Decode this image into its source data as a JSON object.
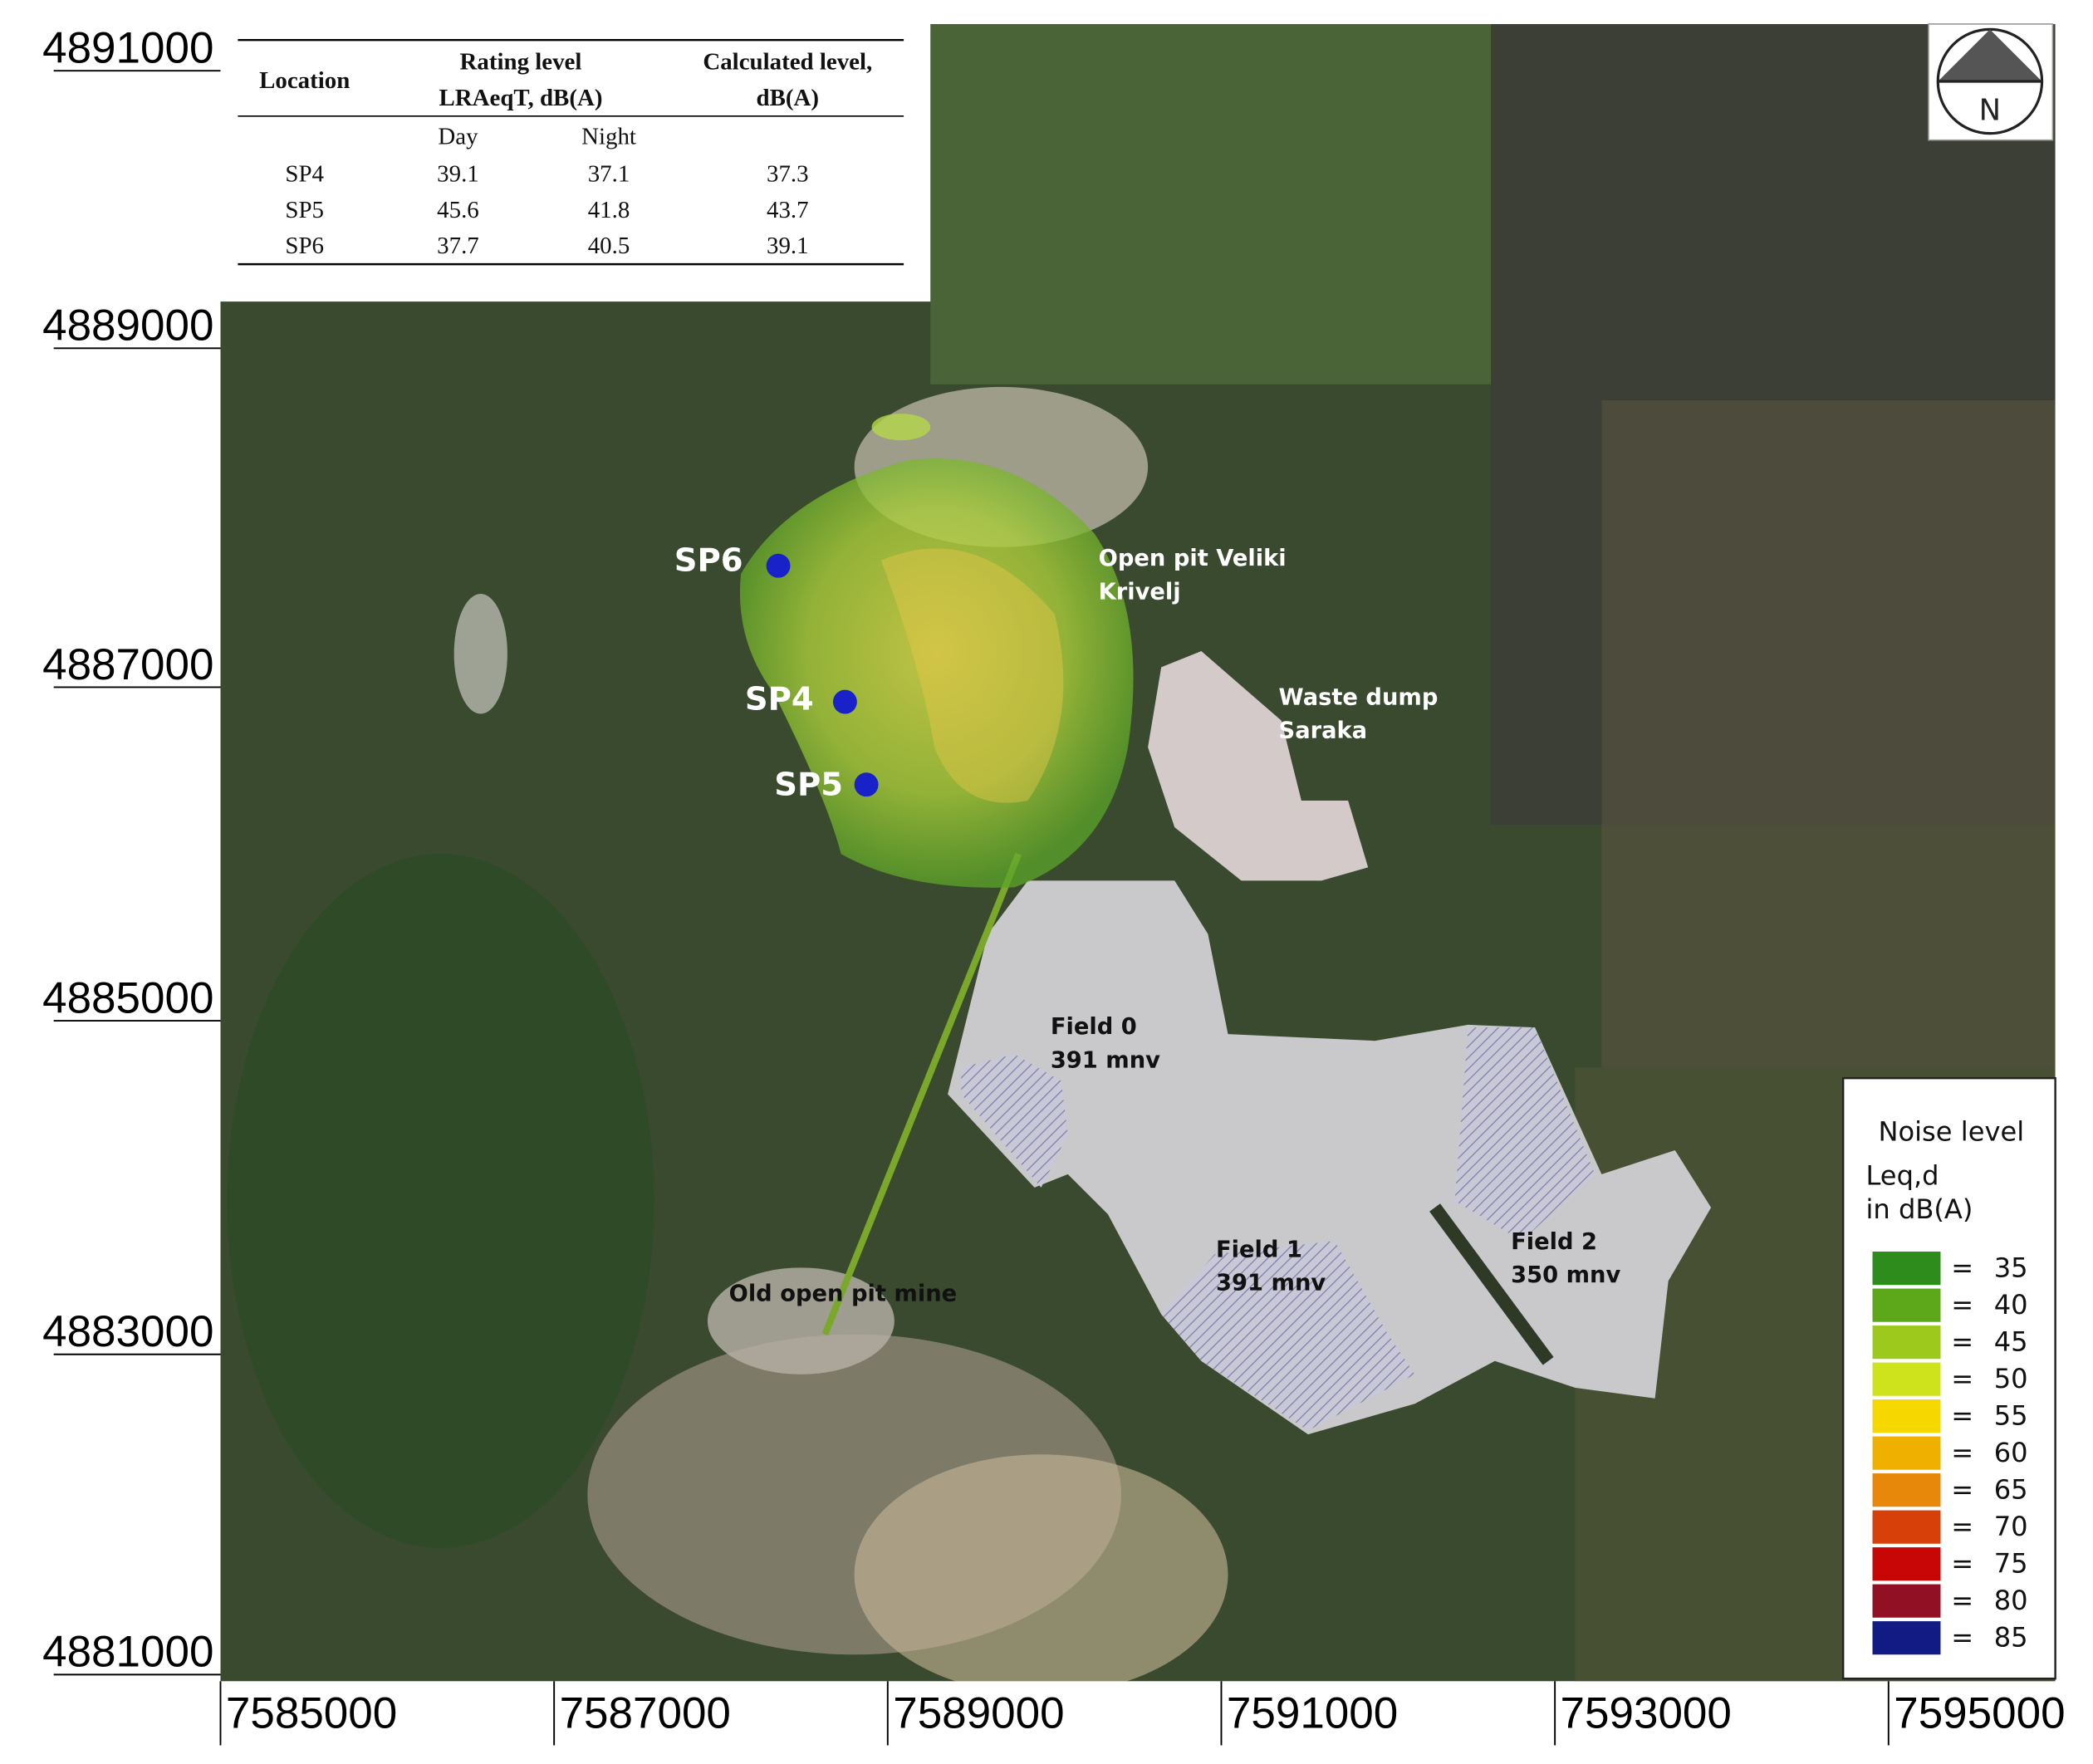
{
  "table": {
    "columns": [
      {
        "lines": [
          "Location"
        ]
      },
      {
        "lines": [
          "Rating level",
          "LRAeqT, dB(A)"
        ],
        "sub": [
          "Day",
          "Night"
        ]
      },
      {
        "lines": [
          "Calculated level,",
          "dB(A)"
        ]
      }
    ],
    "rows": [
      [
        "SP4",
        39.1,
        37.1,
        37.3
      ],
      [
        "SP5",
        45.6,
        41.8,
        43.7
      ],
      [
        "SP6",
        37.7,
        40.5,
        39.1
      ]
    ]
  },
  "north": "N",
  "y_labels": [
    4891000,
    4889000,
    4887000,
    4885000,
    4883000,
    4881000
  ],
  "x_labels": [
    7585000,
    7587000,
    7589000,
    7591000,
    7593000,
    7595000
  ],
  "points": [
    {
      "name": "SP6"
    },
    {
      "name": "SP4"
    },
    {
      "name": "SP5"
    }
  ],
  "labels": [
    {
      "lines": [
        "Open pit Veliki",
        "Krivelj"
      ]
    },
    {
      "lines": [
        "Waste dump",
        "Saraka"
      ]
    },
    {
      "lines": [
        "Field 0",
        "391 mnv"
      ]
    },
    {
      "lines": [
        "Field 1",
        "391 mnv"
      ]
    },
    {
      "lines": [
        "Field 2",
        "350 mnv"
      ]
    },
    {
      "lines": [
        "Old open pit mine"
      ]
    }
  ],
  "legend": {
    "title": "Noise level",
    "subtitle": "Leq,d",
    "unit": "in dB(A)",
    "separator": "=",
    "items": [
      {
        "color": "#2e8c1c",
        "level": 35
      },
      {
        "color": "#5ca71a",
        "level": 40
      },
      {
        "color": "#9cc91c",
        "level": 45
      },
      {
        "color": "#cfe31c",
        "level": 50
      },
      {
        "color": "#f6d800",
        "level": 55
      },
      {
        "color": "#f0b000",
        "level": 60
      },
      {
        "color": "#e8880a",
        "level": 65
      },
      {
        "color": "#d8400a",
        "level": 70
      },
      {
        "color": "#c80606",
        "level": 75
      },
      {
        "color": "#921024",
        "level": 80
      },
      {
        "color": "#121a84",
        "level": 85
      }
    ]
  }
}
